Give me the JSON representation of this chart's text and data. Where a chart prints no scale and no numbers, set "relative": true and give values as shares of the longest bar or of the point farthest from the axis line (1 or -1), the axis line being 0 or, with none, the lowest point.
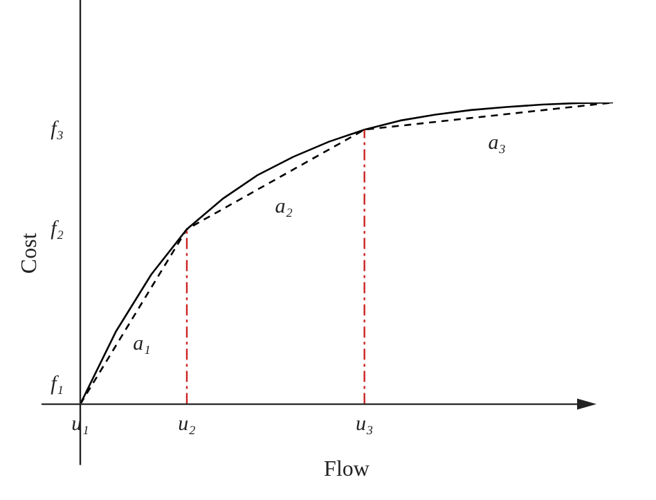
{
  "chart_data": {
    "type": "line",
    "relative": true,
    "xlabel": "Flow",
    "ylabel": "Cost",
    "categories": [
      "u₁",
      null,
      null,
      "u₂",
      null,
      null,
      null,
      null,
      "u₃",
      null,
      null,
      null,
      null,
      null,
      null,
      null
    ],
    "series": [
      {
        "color": "#000000",
        "line_style": "solid",
        "values": [
          0,
          0.24,
          0.43,
          0.58,
          0.68,
          0.76,
          0.82,
          0.87,
          0.91,
          0.94,
          0.96,
          0.975,
          0.985,
          0.993,
          0.998,
          1.0
        ]
      },
      {
        "color": "#000000",
        "line_style": "dashed",
        "values": [
          0,
          null,
          null,
          0.58,
          null,
          null,
          null,
          null,
          0.91,
          null,
          null,
          null,
          null,
          null,
          null,
          1.0
        ]
      }
    ],
    "ref_lines": [
      {
        "axis": "x",
        "value": "u₂",
        "color": "#cc2222",
        "line_style": "dashed"
      },
      {
        "axis": "x",
        "value": "u₃",
        "color": "#cc2222",
        "line_style": "dashed"
      }
    ],
    "annotations": [
      "f₁",
      "f₂",
      "f₃",
      "a₁",
      "a₂",
      "a₃"
    ],
    "legend": false,
    "marker": "none",
    "grid": false
  }
}
